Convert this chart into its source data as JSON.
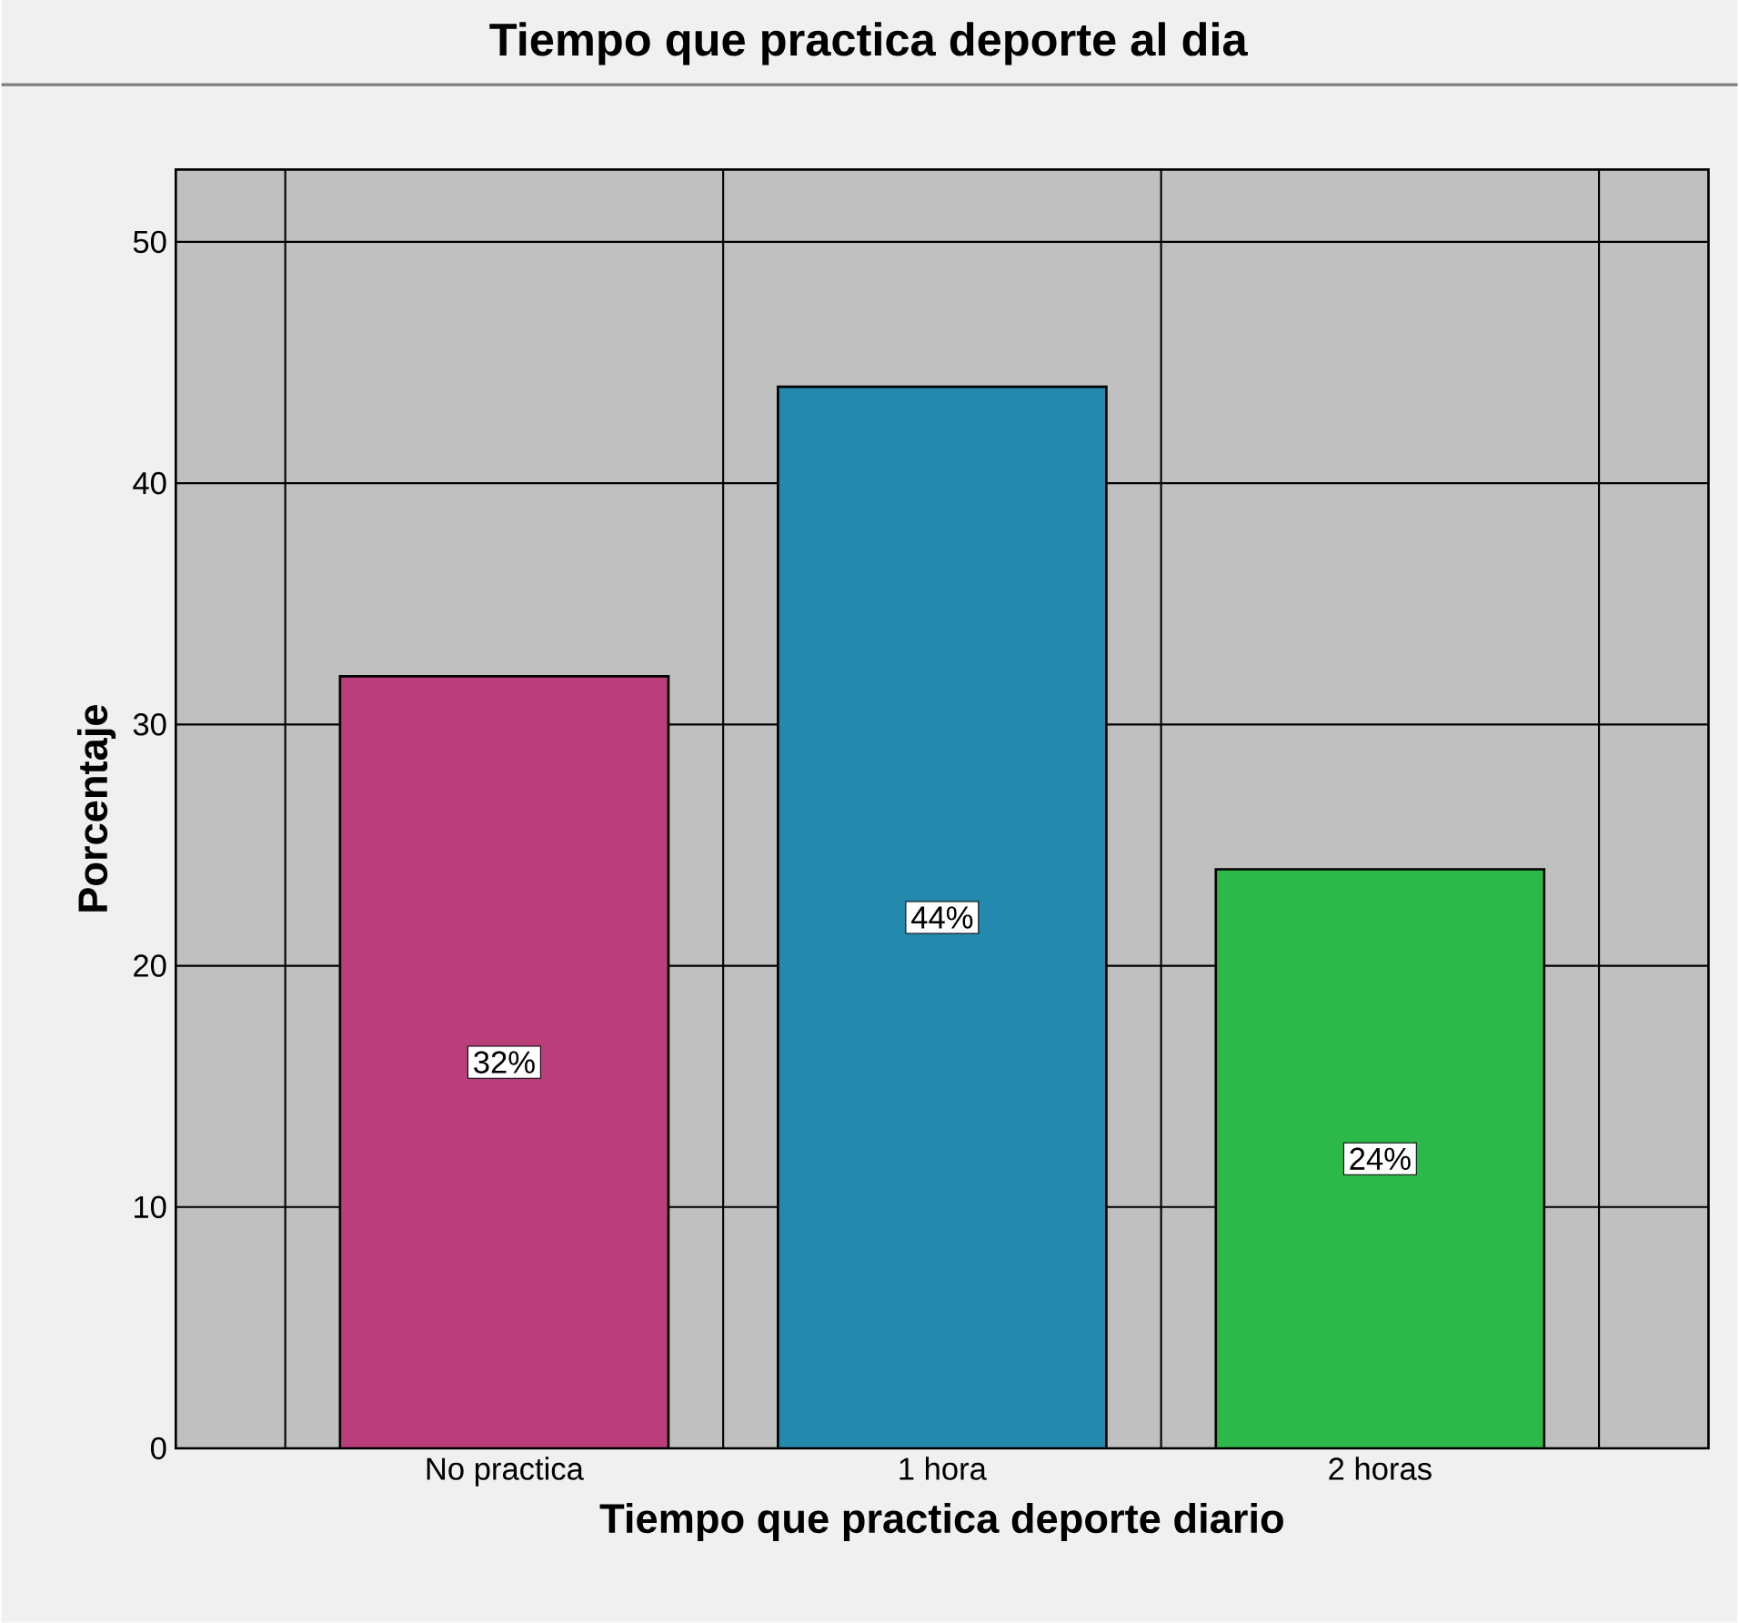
{
  "chart_data": {
    "type": "bar",
    "title": "Tiempo que practica deporte al dia",
    "xlabel": "Tiempo que practica deporte diario",
    "ylabel": "Porcentaje",
    "categories": [
      "No practica",
      "1 hora",
      "2 horas"
    ],
    "values": [
      32,
      44,
      24
    ],
    "colors": [
      "#b93e7a",
      "#248aad",
      "#2db84a"
    ],
    "value_labels": [
      "32%",
      "44%",
      "24%"
    ],
    "ylim": [
      0,
      53
    ],
    "yticks": [
      0,
      10,
      20,
      30,
      40,
      50
    ],
    "grid": true
  }
}
